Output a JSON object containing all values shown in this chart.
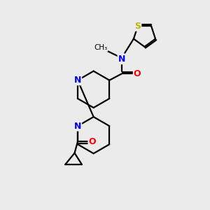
{
  "bg_color": "#ebebeb",
  "bond_color": "#000000",
  "N_color": "#0000ff",
  "O_color": "#ff0000",
  "S_color": "#b8b800",
  "line_width": 1.6,
  "figsize": [
    3.0,
    3.0
  ],
  "dpi": 100,
  "xlim": [
    0,
    10
  ],
  "ylim": [
    0,
    10
  ]
}
